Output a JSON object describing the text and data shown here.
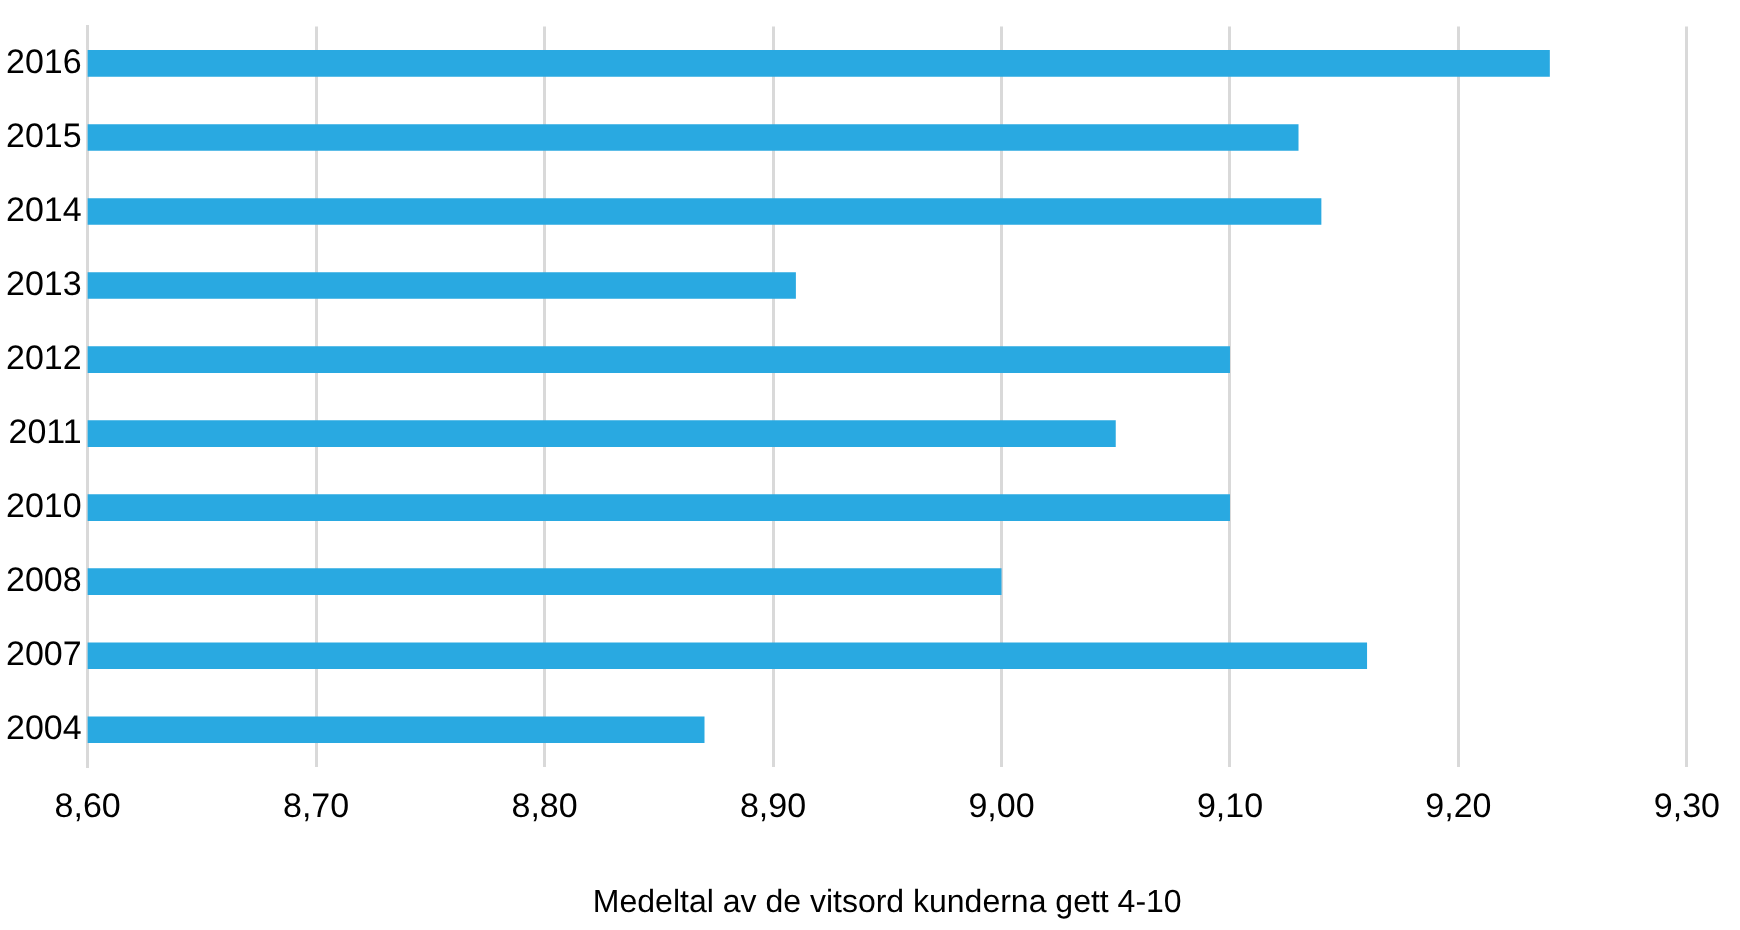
{
  "chart_data": {
    "type": "bar",
    "orientation": "horizontal",
    "xlabel": "Medeltal av de vitsord kunderna gett 4-10",
    "categories": [
      "2016",
      "2015",
      "2014",
      "2013",
      "2012",
      "2011",
      "2010",
      "2008",
      "2007",
      "2004"
    ],
    "values": [
      9.24,
      9.13,
      9.14,
      8.91,
      9.1,
      9.05,
      9.1,
      9.0,
      9.16,
      8.87
    ],
    "color": "#29a9e1",
    "xlim": [
      8.6,
      9.3
    ],
    "xticks": [
      {
        "value": 8.6,
        "label": "8,60"
      },
      {
        "value": 8.7,
        "label": "8,70"
      },
      {
        "value": 8.8,
        "label": "8,80"
      },
      {
        "value": 8.9,
        "label": "8,90"
      },
      {
        "value": 9.0,
        "label": "9,00"
      },
      {
        "value": 9.1,
        "label": "9,10"
      },
      {
        "value": 9.2,
        "label": "9,20"
      },
      {
        "value": 9.3,
        "label": "9,30"
      }
    ],
    "grid": "x",
    "legend": false
  }
}
